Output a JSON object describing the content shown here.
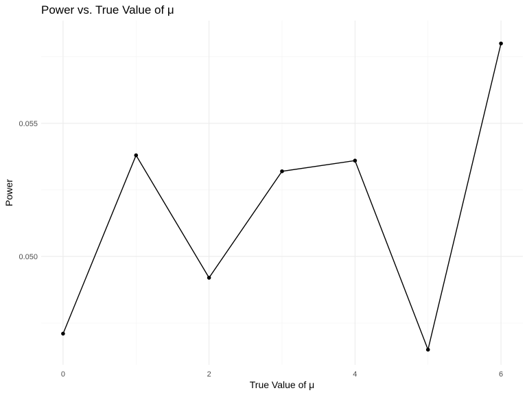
{
  "chart_data": {
    "type": "line",
    "title": "Power vs. True Value of μ",
    "xlabel": "True Value of μ",
    "ylabel": "Power",
    "x": [
      0,
      1,
      2,
      3,
      4,
      5,
      6
    ],
    "series": [
      {
        "values": [
          0.0471,
          0.0538,
          0.0492,
          0.0532,
          0.0536,
          0.0465,
          0.058
        ]
      }
    ],
    "xticks": [
      0,
      2,
      4,
      6
    ],
    "xtick_labels": [
      "0",
      "2",
      "4",
      "6"
    ],
    "yticks": [
      0.05,
      0.055
    ],
    "ytick_labels": [
      "0.050",
      "0.055"
    ],
    "xlim": [
      -0.3,
      6.3
    ],
    "ylim": [
      0.04593,
      0.05886
    ],
    "grid": true,
    "points": true,
    "theme": "minimal",
    "colors": {
      "line": "#000000",
      "grid": "#ebebeb",
      "tick_text": "#4d4d4d"
    }
  }
}
